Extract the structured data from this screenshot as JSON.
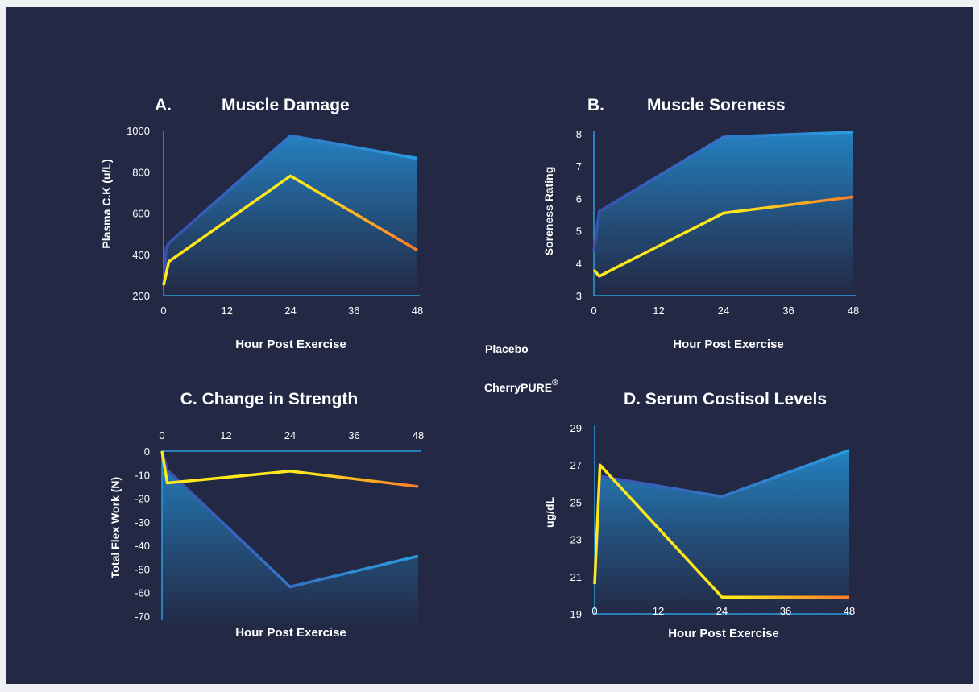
{
  "colors": {
    "background": "#232945",
    "page": "#eef0f3",
    "axis": "#2a9de0",
    "placebo_start": "#3a4fb0",
    "placebo_end": "#2a9de0",
    "cherry_start": "#ffe81a",
    "cherry_end": "#ff7a2a",
    "area_top": "#2590d6"
  },
  "legend": {
    "items": [
      {
        "label": "Placebo",
        "series": "placebo"
      },
      {
        "label": "CherryPURE",
        "series": "cherry",
        "sup": "®"
      }
    ]
  },
  "chart_data": [
    {
      "id": "A",
      "type": "line",
      "letter": "A.",
      "title": "Muscle Damage",
      "xlabel": "Hour Post Exercise",
      "ylabel": "Plasma C.K (u/L)",
      "x_axis_position": "bottom",
      "xticks": [
        0,
        12,
        24,
        36,
        48
      ],
      "yticks": [
        200,
        400,
        600,
        800,
        1000
      ],
      "ylim": [
        200,
        1000
      ],
      "xlim": [
        0,
        48
      ],
      "series": [
        {
          "name": "Placebo",
          "key": "placebo",
          "x": [
            0,
            0.5,
            1,
            24,
            48
          ],
          "y": [
            255,
            430,
            455,
            975,
            865
          ]
        },
        {
          "name": "CherryPURE",
          "key": "cherry",
          "x": [
            0,
            1,
            24,
            48
          ],
          "y": [
            250,
            365,
            780,
            420
          ]
        }
      ]
    },
    {
      "id": "B",
      "type": "line",
      "letter": "B.",
      "title": "Muscle Soreness",
      "xlabel": "Hour Post Exercise",
      "ylabel": "Soreness Rating",
      "x_axis_position": "bottom",
      "xticks": [
        0,
        12,
        24,
        36,
        48
      ],
      "yticks": [
        3,
        4,
        5,
        6,
        7,
        8
      ],
      "ylim": [
        3,
        8.1
      ],
      "xlim": [
        0,
        48
      ],
      "series": [
        {
          "name": "Placebo",
          "key": "placebo",
          "x": [
            0,
            1,
            24,
            48
          ],
          "y": [
            4.4,
            5.6,
            7.9,
            8.05
          ]
        },
        {
          "name": "CherryPURE",
          "key": "cherry",
          "x": [
            0,
            1,
            24,
            48
          ],
          "y": [
            3.8,
            3.6,
            5.55,
            6.05
          ]
        }
      ]
    },
    {
      "id": "C",
      "type": "line",
      "letter": "",
      "title": "C. Change in Strength",
      "xlabel": "Hour Post Exercise",
      "ylabel": "Total Flex Work (N)",
      "x_axis_position": "top",
      "xticks": [
        0,
        12,
        24,
        36,
        48
      ],
      "yticks": [
        0,
        -10,
        -20,
        -30,
        -40,
        -50,
        -60,
        -70
      ],
      "ylim": [
        -73,
        0
      ],
      "xlim": [
        0,
        48
      ],
      "series": [
        {
          "name": "Placebo",
          "key": "placebo",
          "x": [
            0,
            1,
            24,
            48
          ],
          "y": [
            0,
            -8,
            -57.5,
            -44.5
          ]
        },
        {
          "name": "CherryPURE",
          "key": "cherry",
          "x": [
            0,
            1,
            24,
            48
          ],
          "y": [
            0,
            -13.5,
            -8.5,
            -15
          ]
        }
      ]
    },
    {
      "id": "D",
      "type": "line",
      "letter": "",
      "title": "D. Serum Costisol Levels",
      "xlabel": "Hour Post Exercise",
      "ylabel": "ug/dL",
      "x_axis_position": "bottom",
      "xticks": [
        0,
        12,
        24,
        36,
        48
      ],
      "yticks": [
        19,
        21,
        23,
        25,
        27,
        29
      ],
      "ylim": [
        19,
        29.1
      ],
      "xlim": [
        0,
        48
      ],
      "series": [
        {
          "name": "Placebo",
          "key": "placebo",
          "x": [
            0,
            1,
            24,
            48
          ],
          "y": [
            20.6,
            26.4,
            25.3,
            27.8
          ]
        },
        {
          "name": "CherryPURE",
          "key": "cherry",
          "x": [
            0,
            1,
            24,
            48
          ],
          "y": [
            20.6,
            27,
            19.9,
            19.9
          ]
        }
      ]
    }
  ]
}
